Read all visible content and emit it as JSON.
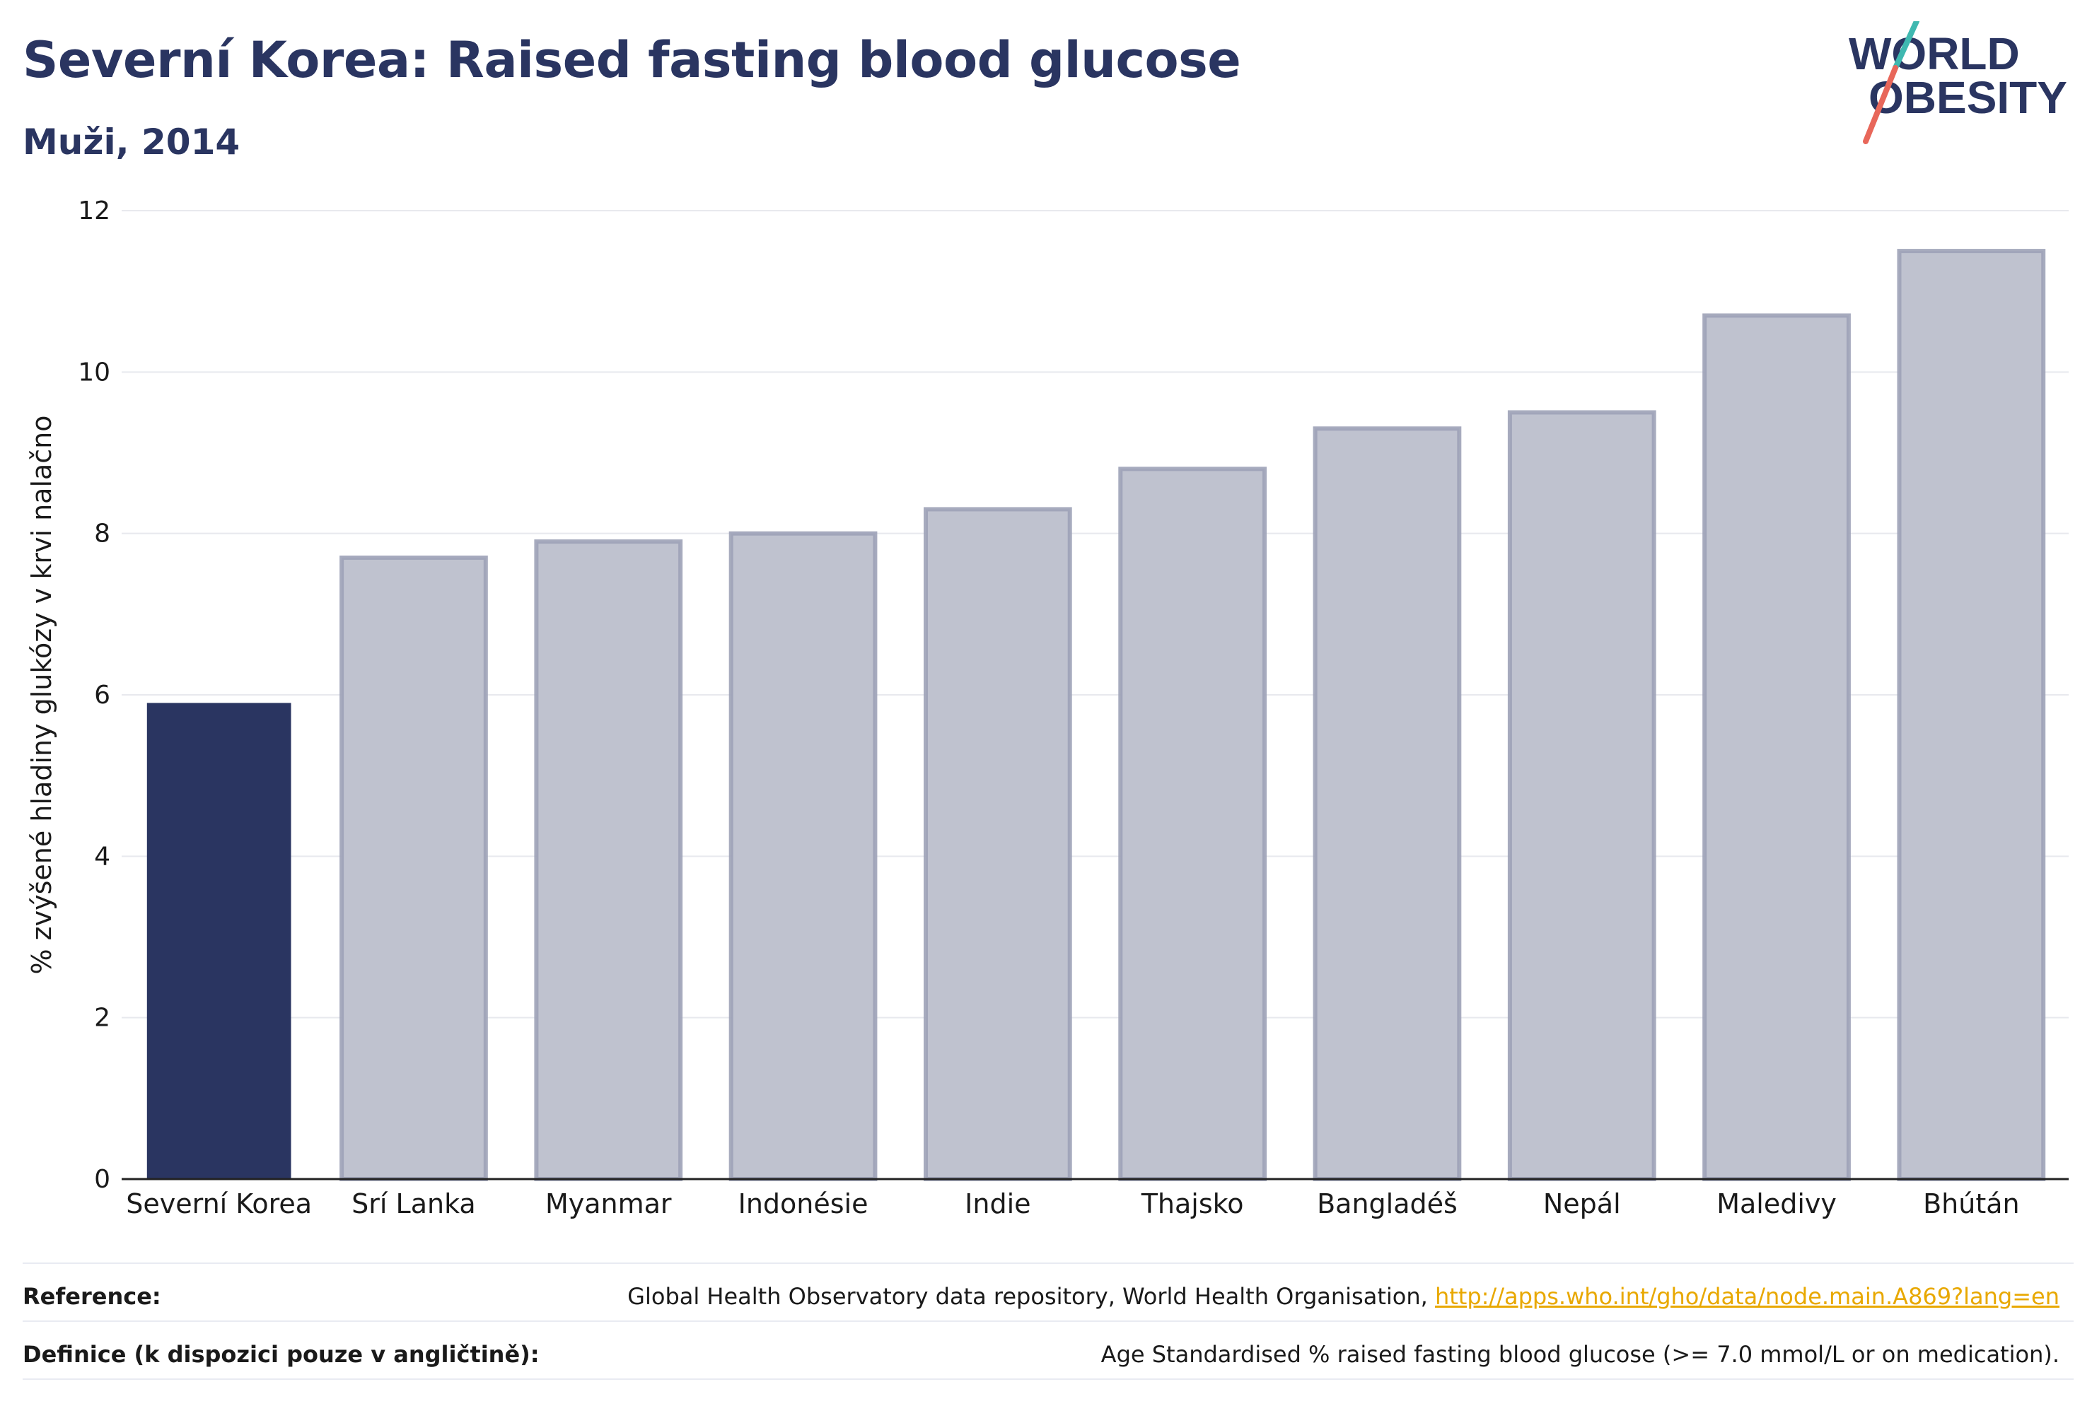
{
  "header": {
    "title": "Severní Korea: Raised fasting blood glucose",
    "subtitle": "Muži, 2014"
  },
  "logo": {
    "line1": "WORLD",
    "line2": "OBESITY",
    "accent_teal": "#3fb8b0",
    "accent_coral": "#e8675a",
    "text_color": "#2a3561"
  },
  "chart_data": {
    "type": "bar",
    "categories": [
      "Severní Korea",
      "Srí Lanka",
      "Myanmar",
      "Indonésie",
      "Indie",
      "Thajsko",
      "Bangladéš",
      "Nepál",
      "Maledivy",
      "Bhútán"
    ],
    "values": [
      5.9,
      7.7,
      7.9,
      8.0,
      8.3,
      8.8,
      9.3,
      9.5,
      10.7,
      11.5
    ],
    "highlight_index": 0,
    "highlight_color": "#2a3561",
    "other_color": "#bfc2cf",
    "other_border_color": "#9da2b7",
    "ylabel": "% zvýšené hladiny glukózy v krvi nalačno",
    "ylim": [
      0,
      12
    ],
    "yticks": [
      0,
      2,
      4,
      6,
      8,
      10,
      12
    ],
    "grid": true
  },
  "footer": {
    "reference_label": "Reference:",
    "reference_text": "Global Health Observatory data repository, World Health Organisation, ",
    "reference_link": "http://apps.who.int/gho/data/node.main.A869?lang=en",
    "definition_label": "Definice (k dispozici pouze v angličtině):",
    "definition_text": "Age Standardised % raised fasting blood glucose (>= 7.0 mmol/L or on medication)."
  }
}
